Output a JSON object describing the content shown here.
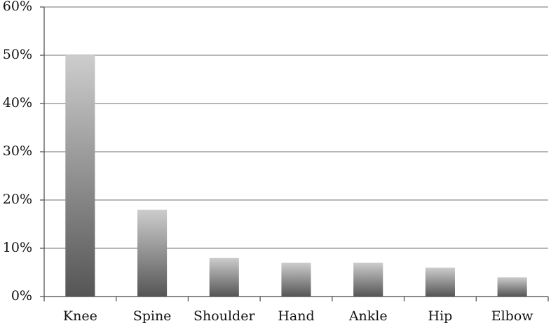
{
  "chart_data": {
    "type": "bar",
    "categories": [
      "Knee",
      "Spine",
      "Shoulder",
      "Hand",
      "Ankle",
      "Hip",
      "Elbow"
    ],
    "values": [
      50,
      18,
      8,
      7,
      7,
      6,
      4
    ],
    "ylim": [
      0,
      60
    ],
    "yticks": [
      {
        "value": 0,
        "label": "0%"
      },
      {
        "value": 10,
        "label": "10%"
      },
      {
        "value": 20,
        "label": "20%"
      },
      {
        "value": 30,
        "label": "30%"
      },
      {
        "value": 40,
        "label": "40%"
      },
      {
        "value": 50,
        "label": "50%"
      },
      {
        "value": 60,
        "label": "60%"
      }
    ],
    "grid": true
  }
}
